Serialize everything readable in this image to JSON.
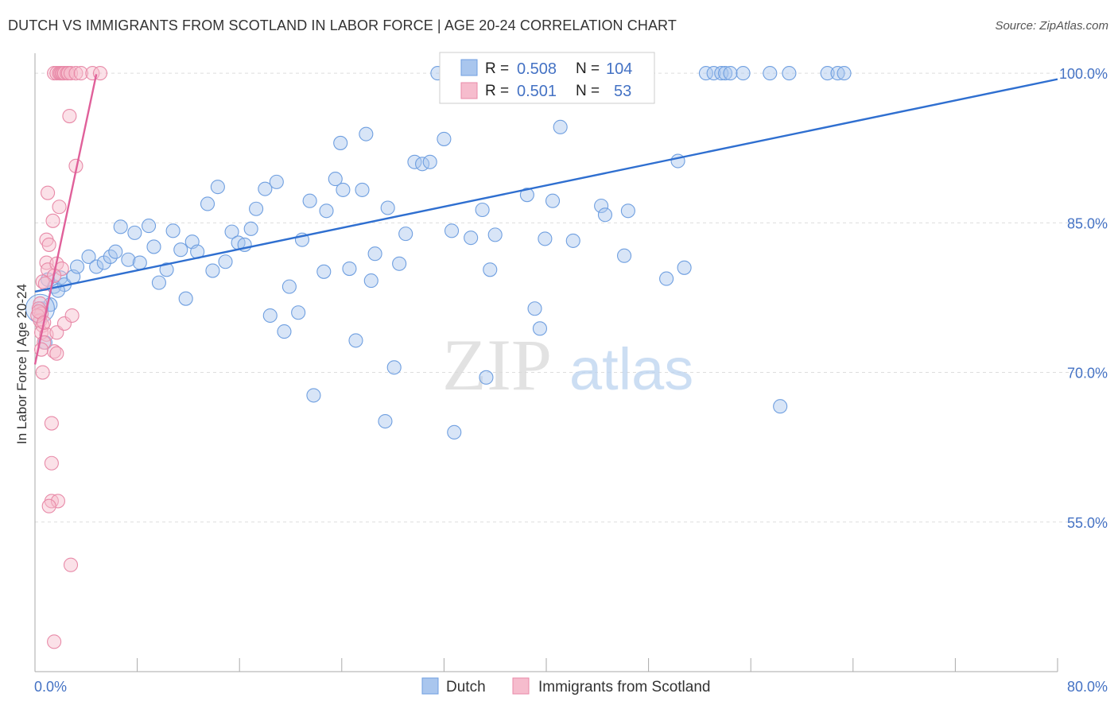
{
  "title": "DUTCH VS IMMIGRANTS FROM SCOTLAND IN LABOR FORCE | AGE 20-24 CORRELATION CHART",
  "source": "Source: ZipAtlas.com",
  "watermark": {
    "zip": "ZIP",
    "atlas": "atlas"
  },
  "colors": {
    "blue_fill": "#a9c6ee",
    "blue_stroke": "#6f9fe0",
    "blue_line": "#2f6fd0",
    "pink_fill": "#f6bccd",
    "pink_stroke": "#e88aa8",
    "pink_line": "#e0609a",
    "tick_text": "#4472c4",
    "grid": "#dddddd"
  },
  "legend": {
    "r_label": "R =",
    "n_label": "N =",
    "rows": [
      {
        "series": "Dutch",
        "r": "0.508",
        "n": "104",
        "color": "blue"
      },
      {
        "series": "Immigrants from Scotland",
        "r": "0.501",
        "n": "53",
        "color": "pink"
      }
    ]
  },
  "chart_data": {
    "type": "scatter",
    "title": "DUTCH VS IMMIGRANTS FROM SCOTLAND IN LABOR FORCE | AGE 20-24 CORRELATION CHART",
    "xlabel": "",
    "ylabel": "In Labor Force | Age 20-24",
    "xlim": [
      0,
      80
    ],
    "ylim": [
      40,
      102
    ],
    "x_ticks": [
      0,
      80
    ],
    "x_tick_labels": [
      "0.0%",
      "80.0%"
    ],
    "y_ticks": [
      100,
      85,
      70,
      55
    ],
    "y_tick_labels": [
      "100.0%",
      "85.0%",
      "70.0%",
      "55.0%"
    ],
    "grid": true,
    "legend_position": "top-center",
    "series": [
      {
        "name": "Dutch",
        "color": "blue",
        "trend": {
          "x": [
            0,
            80
          ],
          "y": [
            78.1,
            99.4
          ]
        },
        "points": [
          [
            1.2,
            76.8
          ],
          [
            1.5,
            78.6
          ],
          [
            2.0,
            79.5
          ],
          [
            2.3,
            78.8
          ],
          [
            3.0,
            79.6
          ],
          [
            3.3,
            80.6
          ],
          [
            4.2,
            81.6
          ],
          [
            4.8,
            80.6
          ],
          [
            5.4,
            81.0
          ],
          [
            5.9,
            81.6
          ],
          [
            6.3,
            82.1
          ],
          [
            6.7,
            84.6
          ],
          [
            7.3,
            81.3
          ],
          [
            7.8,
            84.0
          ],
          [
            8.2,
            81.0
          ],
          [
            8.9,
            84.7
          ],
          [
            9.3,
            82.6
          ],
          [
            9.7,
            79.0
          ],
          [
            10.3,
            80.3
          ],
          [
            10.8,
            84.2
          ],
          [
            11.4,
            82.3
          ],
          [
            11.8,
            77.4
          ],
          [
            12.3,
            83.1
          ],
          [
            12.7,
            82.1
          ],
          [
            13.5,
            86.9
          ],
          [
            13.9,
            80.2
          ],
          [
            14.3,
            88.6
          ],
          [
            14.9,
            81.1
          ],
          [
            15.4,
            84.1
          ],
          [
            15.9,
            83.0
          ],
          [
            16.4,
            82.8
          ],
          [
            16.9,
            84.4
          ],
          [
            17.3,
            86.4
          ],
          [
            18.0,
            88.4
          ],
          [
            18.4,
            75.7
          ],
          [
            18.9,
            89.1
          ],
          [
            19.5,
            74.1
          ],
          [
            19.9,
            78.6
          ],
          [
            20.6,
            76.0
          ],
          [
            20.9,
            83.3
          ],
          [
            21.5,
            87.2
          ],
          [
            21.8,
            67.7
          ],
          [
            22.6,
            80.1
          ],
          [
            22.8,
            86.2
          ],
          [
            23.5,
            89.4
          ],
          [
            23.9,
            93.0
          ],
          [
            24.1,
            88.3
          ],
          [
            24.6,
            80.4
          ],
          [
            25.1,
            73.2
          ],
          [
            25.6,
            88.3
          ],
          [
            25.9,
            93.9
          ],
          [
            26.3,
            79.2
          ],
          [
            26.6,
            81.9
          ],
          [
            27.4,
            65.1
          ],
          [
            27.6,
            86.5
          ],
          [
            28.1,
            70.5
          ],
          [
            28.5,
            80.9
          ],
          [
            29.0,
            83.9
          ],
          [
            29.7,
            91.1
          ],
          [
            30.3,
            90.9
          ],
          [
            30.9,
            91.1
          ],
          [
            31.5,
            100.0
          ],
          [
            32.0,
            93.4
          ],
          [
            32.6,
            84.2
          ],
          [
            32.8,
            64.0
          ],
          [
            34.1,
            83.5
          ],
          [
            35.0,
            86.3
          ],
          [
            35.3,
            69.5
          ],
          [
            35.6,
            80.3
          ],
          [
            36.0,
            83.8
          ],
          [
            38.0,
            100.0
          ],
          [
            38.5,
            87.8
          ],
          [
            39.1,
            76.4
          ],
          [
            39.5,
            74.4
          ],
          [
            39.9,
            83.4
          ],
          [
            40.5,
            87.2
          ],
          [
            41.1,
            94.6
          ],
          [
            42.1,
            83.2
          ],
          [
            43.0,
            100.0
          ],
          [
            44.3,
            86.7
          ],
          [
            44.6,
            85.8
          ],
          [
            46.1,
            81.7
          ],
          [
            46.4,
            86.2
          ],
          [
            47.9,
            100.0
          ],
          [
            49.4,
            79.4
          ],
          [
            50.3,
            91.2
          ],
          [
            50.8,
            80.5
          ],
          [
            52.5,
            100.0
          ],
          [
            53.1,
            100.0
          ],
          [
            53.7,
            100.0
          ],
          [
            54.0,
            100.0
          ],
          [
            54.4,
            100.0
          ],
          [
            55.4,
            100.0
          ],
          [
            57.5,
            100.0
          ],
          [
            58.3,
            66.6
          ],
          [
            59.0,
            100.0
          ],
          [
            62.0,
            100.0
          ],
          [
            62.8,
            100.0
          ],
          [
            63.3,
            100.0
          ],
          [
            37.0,
            100.0
          ],
          [
            0.5,
            76.4
          ],
          [
            1.0,
            79.3
          ],
          [
            0.8,
            73.0
          ],
          [
            1.8,
            78.2
          ]
        ]
      },
      {
        "name": "Immigrants from Scotland",
        "color": "pink",
        "trend": {
          "x": [
            0,
            4.8
          ],
          "y": [
            70.8,
            99.9
          ]
        },
        "points": [
          [
            1.5,
            100.0
          ],
          [
            1.7,
            100.0
          ],
          [
            1.9,
            100.0
          ],
          [
            2.0,
            100.0
          ],
          [
            2.1,
            100.0
          ],
          [
            2.2,
            100.0
          ],
          [
            2.3,
            100.0
          ],
          [
            2.5,
            100.0
          ],
          [
            2.6,
            100.0
          ],
          [
            2.8,
            100.0
          ],
          [
            3.2,
            100.0
          ],
          [
            3.6,
            100.0
          ],
          [
            4.5,
            100.0
          ],
          [
            5.1,
            100.0
          ],
          [
            2.7,
            95.7
          ],
          [
            3.2,
            90.7
          ],
          [
            1.0,
            88.0
          ],
          [
            1.4,
            85.2
          ],
          [
            1.9,
            86.6
          ],
          [
            0.9,
            83.3
          ],
          [
            1.1,
            82.8
          ],
          [
            0.9,
            81.0
          ],
          [
            1.0,
            80.3
          ],
          [
            1.7,
            80.9
          ],
          [
            2.1,
            80.4
          ],
          [
            1.5,
            79.7
          ],
          [
            0.6,
            79.1
          ],
          [
            0.8,
            78.9
          ],
          [
            0.4,
            76.9
          ],
          [
            0.3,
            76.4
          ],
          [
            0.5,
            75.9
          ],
          [
            0.4,
            75.2
          ],
          [
            0.6,
            74.7
          ],
          [
            0.2,
            75.7
          ],
          [
            0.5,
            74.0
          ],
          [
            0.9,
            73.8
          ],
          [
            1.7,
            74.0
          ],
          [
            2.3,
            74.9
          ],
          [
            2.9,
            75.7
          ],
          [
            0.7,
            73.0
          ],
          [
            0.5,
            72.3
          ],
          [
            1.5,
            72.1
          ],
          [
            1.7,
            71.9
          ],
          [
            0.6,
            70.0
          ],
          [
            1.3,
            64.9
          ],
          [
            1.3,
            60.9
          ],
          [
            1.3,
            57.1
          ],
          [
            1.8,
            57.1
          ],
          [
            1.1,
            56.6
          ],
          [
            2.8,
            50.7
          ],
          [
            1.5,
            43.0
          ],
          [
            0.3,
            76.1
          ],
          [
            0.7,
            75.0
          ]
        ]
      }
    ]
  },
  "bottom_legend": [
    {
      "label": "Dutch",
      "color": "blue"
    },
    {
      "label": "Immigrants from Scotland",
      "color": "pink"
    }
  ]
}
